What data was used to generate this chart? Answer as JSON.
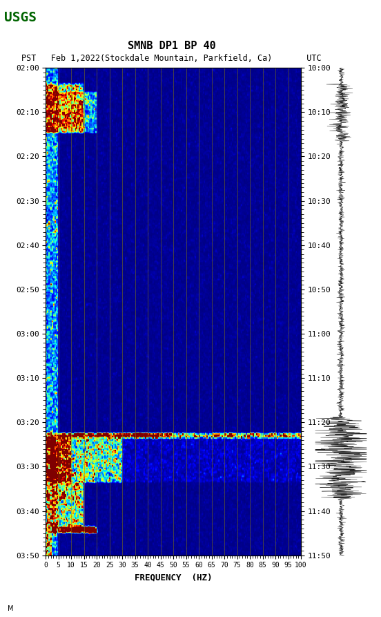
{
  "title_line1": "SMNB DP1 BP 40",
  "title_line2": "PST   Feb 1,2022(Stockdale Mountain, Parkfield, Ca)       UTC",
  "time_start_left": "02:00",
  "time_end_left": "03:50",
  "time_start_right": "10:00",
  "time_end_right": "11:50",
  "time_labels_left": [
    "02:00",
    "02:10",
    "02:20",
    "02:30",
    "02:40",
    "02:50",
    "03:00",
    "03:10",
    "03:20",
    "03:30",
    "03:40",
    "03:50"
  ],
  "time_labels_right": [
    "10:00",
    "10:10",
    "10:20",
    "10:30",
    "10:40",
    "10:50",
    "11:00",
    "11:10",
    "11:20",
    "11:30",
    "11:40",
    "11:50"
  ],
  "freq_ticks": [
    0,
    5,
    10,
    15,
    20,
    25,
    30,
    35,
    40,
    45,
    50,
    55,
    60,
    65,
    70,
    75,
    80,
    85,
    90,
    95,
    100
  ],
  "xlabel": "FREQUENCY  (HZ)",
  "background_color": "#ffffff",
  "spectrogram_bg": "#00008B",
  "vertical_line_color": "#8B8000",
  "figsize": [
    5.52,
    8.93
  ],
  "dpi": 100
}
